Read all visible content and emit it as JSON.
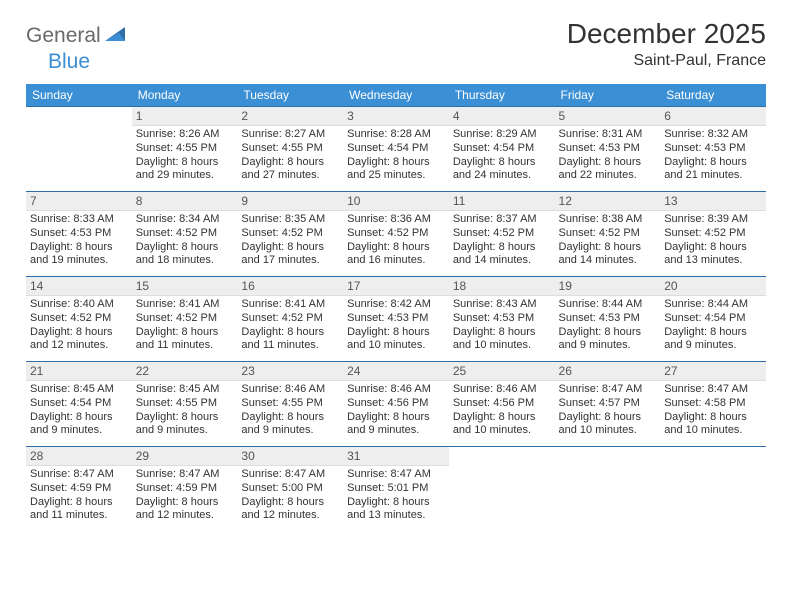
{
  "logo": {
    "part1": "General",
    "part2": "Blue"
  },
  "title": "December 2025",
  "location": "Saint-Paul, France",
  "colors": {
    "header_bg": "#3b8fd4",
    "header_text": "#ffffff",
    "daynum_bg": "#eeeeee",
    "row_border": "#2f6fa8",
    "text": "#333333",
    "logo_gray": "#6a6a6a",
    "logo_blue": "#3b8fd4"
  },
  "weekdays": [
    "Sunday",
    "Monday",
    "Tuesday",
    "Wednesday",
    "Thursday",
    "Friday",
    "Saturday"
  ],
  "weeks": [
    [
      null,
      {
        "n": "1",
        "sunrise": "8:26 AM",
        "sunset": "4:55 PM",
        "daylight": "8 hours and 29 minutes."
      },
      {
        "n": "2",
        "sunrise": "8:27 AM",
        "sunset": "4:55 PM",
        "daylight": "8 hours and 27 minutes."
      },
      {
        "n": "3",
        "sunrise": "8:28 AM",
        "sunset": "4:54 PM",
        "daylight": "8 hours and 25 minutes."
      },
      {
        "n": "4",
        "sunrise": "8:29 AM",
        "sunset": "4:54 PM",
        "daylight": "8 hours and 24 minutes."
      },
      {
        "n": "5",
        "sunrise": "8:31 AM",
        "sunset": "4:53 PM",
        "daylight": "8 hours and 22 minutes."
      },
      {
        "n": "6",
        "sunrise": "8:32 AM",
        "sunset": "4:53 PM",
        "daylight": "8 hours and 21 minutes."
      }
    ],
    [
      {
        "n": "7",
        "sunrise": "8:33 AM",
        "sunset": "4:53 PM",
        "daylight": "8 hours and 19 minutes."
      },
      {
        "n": "8",
        "sunrise": "8:34 AM",
        "sunset": "4:52 PM",
        "daylight": "8 hours and 18 minutes."
      },
      {
        "n": "9",
        "sunrise": "8:35 AM",
        "sunset": "4:52 PM",
        "daylight": "8 hours and 17 minutes."
      },
      {
        "n": "10",
        "sunrise": "8:36 AM",
        "sunset": "4:52 PM",
        "daylight": "8 hours and 16 minutes."
      },
      {
        "n": "11",
        "sunrise": "8:37 AM",
        "sunset": "4:52 PM",
        "daylight": "8 hours and 14 minutes."
      },
      {
        "n": "12",
        "sunrise": "8:38 AM",
        "sunset": "4:52 PM",
        "daylight": "8 hours and 14 minutes."
      },
      {
        "n": "13",
        "sunrise": "8:39 AM",
        "sunset": "4:52 PM",
        "daylight": "8 hours and 13 minutes."
      }
    ],
    [
      {
        "n": "14",
        "sunrise": "8:40 AM",
        "sunset": "4:52 PM",
        "daylight": "8 hours and 12 minutes."
      },
      {
        "n": "15",
        "sunrise": "8:41 AM",
        "sunset": "4:52 PM",
        "daylight": "8 hours and 11 minutes."
      },
      {
        "n": "16",
        "sunrise": "8:41 AM",
        "sunset": "4:52 PM",
        "daylight": "8 hours and 11 minutes."
      },
      {
        "n": "17",
        "sunrise": "8:42 AM",
        "sunset": "4:53 PM",
        "daylight": "8 hours and 10 minutes."
      },
      {
        "n": "18",
        "sunrise": "8:43 AM",
        "sunset": "4:53 PM",
        "daylight": "8 hours and 10 minutes."
      },
      {
        "n": "19",
        "sunrise": "8:44 AM",
        "sunset": "4:53 PM",
        "daylight": "8 hours and 9 minutes."
      },
      {
        "n": "20",
        "sunrise": "8:44 AM",
        "sunset": "4:54 PM",
        "daylight": "8 hours and 9 minutes."
      }
    ],
    [
      {
        "n": "21",
        "sunrise": "8:45 AM",
        "sunset": "4:54 PM",
        "daylight": "8 hours and 9 minutes."
      },
      {
        "n": "22",
        "sunrise": "8:45 AM",
        "sunset": "4:55 PM",
        "daylight": "8 hours and 9 minutes."
      },
      {
        "n": "23",
        "sunrise": "8:46 AM",
        "sunset": "4:55 PM",
        "daylight": "8 hours and 9 minutes."
      },
      {
        "n": "24",
        "sunrise": "8:46 AM",
        "sunset": "4:56 PM",
        "daylight": "8 hours and 9 minutes."
      },
      {
        "n": "25",
        "sunrise": "8:46 AM",
        "sunset": "4:56 PM",
        "daylight": "8 hours and 10 minutes."
      },
      {
        "n": "26",
        "sunrise": "8:47 AM",
        "sunset": "4:57 PM",
        "daylight": "8 hours and 10 minutes."
      },
      {
        "n": "27",
        "sunrise": "8:47 AM",
        "sunset": "4:58 PM",
        "daylight": "8 hours and 10 minutes."
      }
    ],
    [
      {
        "n": "28",
        "sunrise": "8:47 AM",
        "sunset": "4:59 PM",
        "daylight": "8 hours and 11 minutes."
      },
      {
        "n": "29",
        "sunrise": "8:47 AM",
        "sunset": "4:59 PM",
        "daylight": "8 hours and 12 minutes."
      },
      {
        "n": "30",
        "sunrise": "8:47 AM",
        "sunset": "5:00 PM",
        "daylight": "8 hours and 12 minutes."
      },
      {
        "n": "31",
        "sunrise": "8:47 AM",
        "sunset": "5:01 PM",
        "daylight": "8 hours and 13 minutes."
      },
      null,
      null,
      null
    ]
  ],
  "labels": {
    "sunrise": "Sunrise: ",
    "sunset": "Sunset: ",
    "daylight": "Daylight: "
  }
}
